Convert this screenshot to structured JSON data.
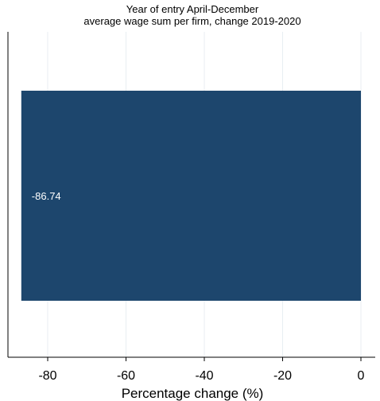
{
  "chart_data": {
    "type": "bar",
    "orientation": "horizontal",
    "title": "Year of entry April-December",
    "subtitle": "average wage sum per firm, change 2019-2020",
    "xlabel": "Percentage change (%)",
    "ylabel": "",
    "xlim": [
      -90,
      0
    ],
    "xticks": [
      "-80",
      "-60",
      "-40",
      "-20",
      "0"
    ],
    "xtick_values": [
      -80,
      -60,
      -40,
      -20,
      0
    ],
    "categories": [
      ""
    ],
    "values": [
      -86.74
    ],
    "value_labels": [
      "-86.74"
    ],
    "grid": "vertical",
    "legend": "none",
    "bar_color": "#1d466d",
    "grid_color": "#e8eef2"
  }
}
